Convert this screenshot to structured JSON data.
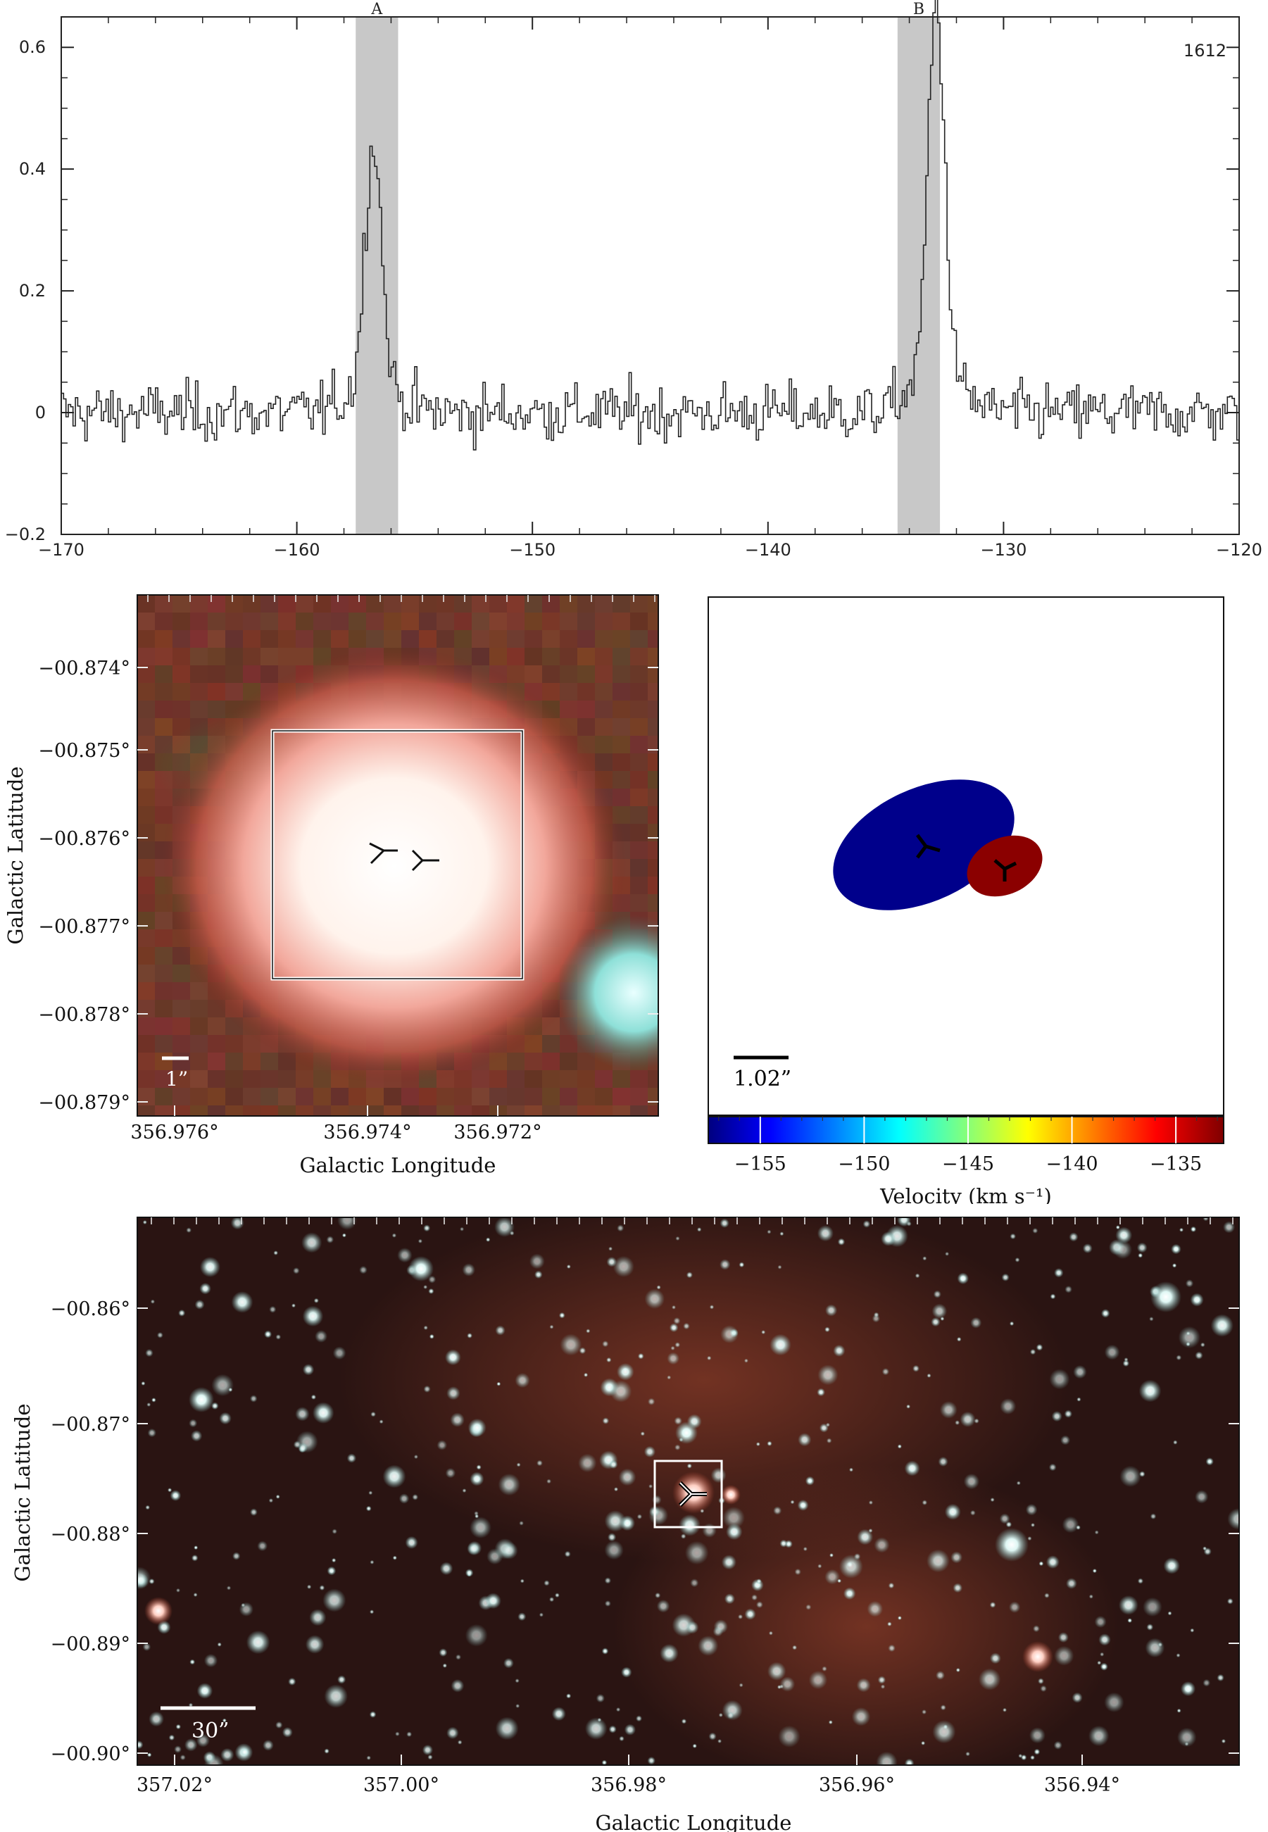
{
  "chart_data": [
    {
      "type": "line",
      "subtype": "step-spectrum",
      "panel_label": "1612",
      "xlim": [
        -170,
        -120
      ],
      "ylim": [
        -0.2,
        0.65
      ],
      "xticks": [
        -170,
        -160,
        -150,
        -140,
        -130,
        -120
      ],
      "yticks": [
        -0.2,
        0,
        0.2,
        0.4,
        0.6
      ],
      "xtick_labels": [
        "−170",
        "−160",
        "−150",
        "−140",
        "−130",
        "−120"
      ],
      "ytick_labels": [
        "−0.2",
        "0",
        "0.2",
        "0.4",
        "0.6"
      ],
      "shaded_regions": [
        {
          "label": "A",
          "x": [
            -157.5,
            -155.7
          ]
        },
        {
          "label": "B",
          "x": [
            -134.5,
            -132.7
          ]
        }
      ],
      "peaks": [
        {
          "label": "A",
          "x": -156.8,
          "y": 0.4
        },
        {
          "label": "B",
          "x": -132.9,
          "y": 0.6
        }
      ],
      "noise_rms": 0.045,
      "grid": false
    },
    {
      "type": "image",
      "panel": "rgb-zoom",
      "xlabel": "Galactic Longitude",
      "ylabel": "Galactic Latitude",
      "xtick_labels": [
        "356.976°",
        "356.974°",
        "356.972°"
      ],
      "ytick_labels": [
        "−00.874°",
        "−00.875°",
        "−00.876°",
        "−00.877°",
        "−00.878°",
        "−00.879°"
      ],
      "scalebar_label": "1”"
    },
    {
      "type": "scatter",
      "panel": "maser-velocity-map",
      "scalebar_label": "1.02”",
      "colorbar": {
        "label": "Velocity (km s⁻¹)",
        "range": [
          -157.5,
          -132.7
        ],
        "tick_values": [
          -155,
          -150,
          -145,
          -140,
          -135
        ],
        "tick_labels": [
          "−155",
          "−150",
          "−145",
          "−140",
          "−135"
        ]
      },
      "components": [
        {
          "velocity": -156.8,
          "color": "#00008b"
        },
        {
          "velocity": -132.9,
          "color": "#8b0000"
        }
      ]
    },
    {
      "type": "image",
      "panel": "rgb-wide-field",
      "xlabel": "Galactic Longitude",
      "ylabel": "Galactic Latitude",
      "xtick_labels": [
        "357.02°",
        "357.00°",
        "356.98°",
        "356.96°",
        "356.94°"
      ],
      "ytick_labels": [
        "−00.86°",
        "−00.87°",
        "−00.88°",
        "−00.89°",
        "−00.90°"
      ],
      "scalebar_label": "30”"
    }
  ],
  "colors": {
    "shade": "#c8c8c8",
    "spectrum": "#222222",
    "blue_component": "#00008b",
    "red_component": "#8b0000"
  }
}
